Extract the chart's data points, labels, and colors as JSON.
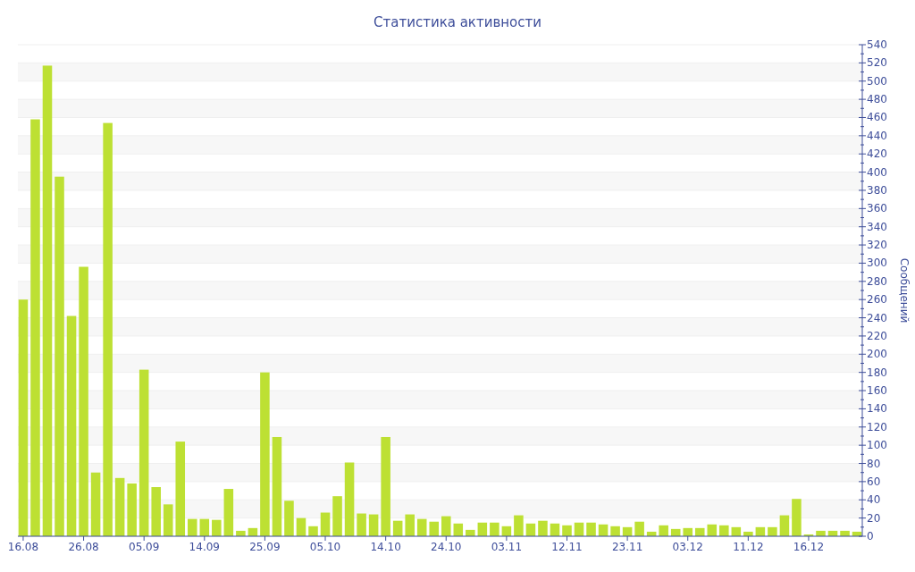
{
  "chart_data": {
    "type": "bar",
    "title": "Статистика активности",
    "ylabel": "Сообщений",
    "categories": [
      "16.08",
      null,
      null,
      null,
      null,
      "26.08",
      null,
      null,
      null,
      null,
      "05.09",
      null,
      null,
      null,
      null,
      "14.09",
      null,
      null,
      null,
      null,
      "25.09",
      null,
      null,
      null,
      null,
      "05.10",
      null,
      null,
      null,
      null,
      "14.10",
      null,
      null,
      null,
      null,
      "24.10",
      null,
      null,
      null,
      null,
      "03.11",
      null,
      null,
      null,
      null,
      "12.11",
      null,
      null,
      null,
      null,
      "23.11",
      null,
      null,
      null,
      null,
      "03.12",
      null,
      null,
      null,
      null,
      "11.12",
      null,
      null,
      null,
      null,
      "16.12",
      null,
      null,
      null,
      null
    ],
    "values": [
      260,
      458,
      517,
      395,
      242,
      296,
      70,
      454,
      64,
      58,
      183,
      54,
      35,
      104,
      19,
      19,
      18,
      52,
      6,
      9,
      180,
      109,
      39,
      20,
      11,
      26,
      44,
      81,
      25,
      24,
      109,
      17,
      24,
      19,
      16,
      22,
      14,
      7,
      15,
      15,
      11,
      23,
      14,
      17,
      14,
      12,
      15,
      15,
      13,
      11,
      10,
      16,
      5,
      12,
      8,
      9,
      9,
      13,
      12,
      10,
      5,
      10,
      10,
      23,
      41,
      2,
      6,
      6,
      6,
      5
    ],
    "color": "#bde033",
    "ylim": [
      0,
      540
    ],
    "yticks": [
      0,
      {
        "value": 10,
        "label": null
      },
      20,
      {
        "value": 30,
        "label": null
      },
      40,
      {
        "value": 50,
        "label": null
      },
      60,
      {
        "value": 70,
        "label": null
      },
      80,
      {
        "value": 90,
        "label": null
      },
      100,
      {
        "value": 110,
        "label": null
      },
      120,
      {
        "value": 130,
        "label": null
      },
      140,
      {
        "value": 150,
        "label": null
      },
      160,
      {
        "value": 170,
        "label": null
      },
      180,
      {
        "value": 190,
        "label": null
      },
      200,
      {
        "value": 210,
        "label": null
      },
      220,
      {
        "value": 230,
        "label": null
      },
      240,
      {
        "value": 250,
        "label": null
      },
      260,
      {
        "value": 270,
        "label": null
      },
      280,
      {
        "value": 290,
        "label": null
      },
      300,
      {
        "value": 310,
        "label": null
      },
      320,
      {
        "value": 330,
        "label": null
      },
      340,
      {
        "value": 350,
        "label": null
      },
      360,
      {
        "value": 370,
        "label": null
      },
      380,
      {
        "value": 390,
        "label": null
      },
      400,
      {
        "value": 410,
        "label": null
      },
      420,
      {
        "value": 430,
        "label": null
      },
      440,
      {
        "value": 450,
        "label": null
      },
      460,
      {
        "value": 470,
        "label": null
      },
      480,
      {
        "value": 490,
        "label": null
      },
      500,
      {
        "value": 510,
        "label": null
      },
      520,
      {
        "value": 530,
        "label": null
      },
      540
    ],
    "grid": "y"
  }
}
